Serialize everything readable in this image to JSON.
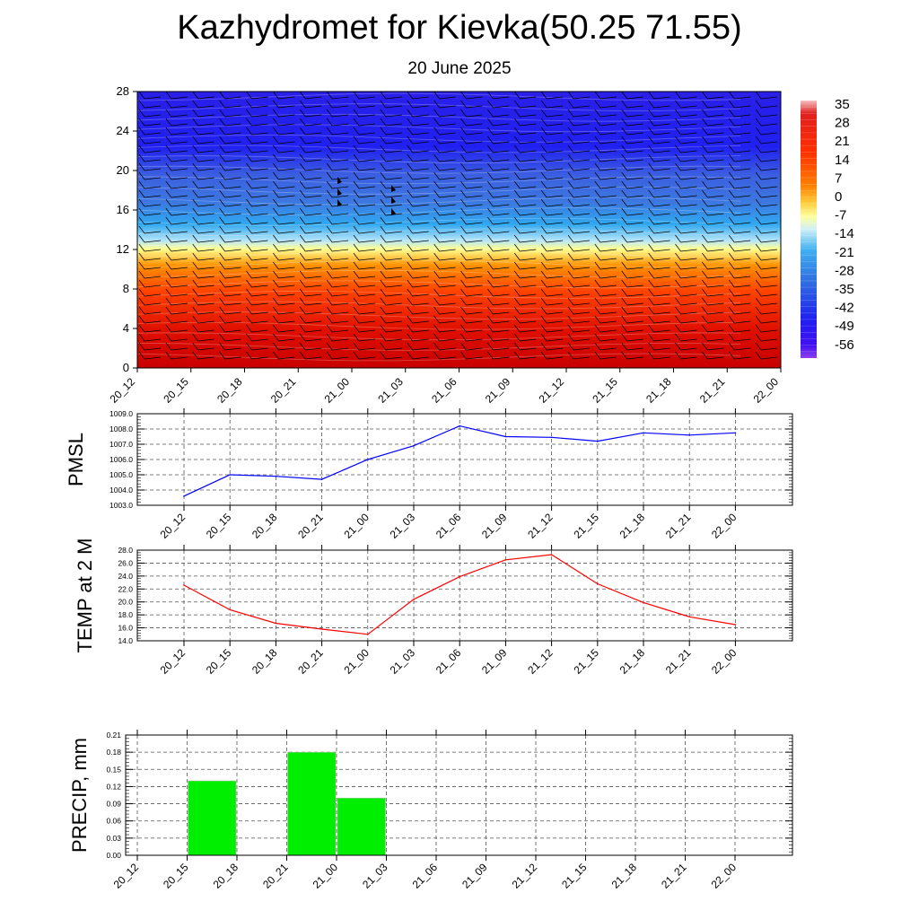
{
  "title": "Kazhydromet for Kievka(50.25 71.55)",
  "subtitle": "20 June 2025",
  "colors": {
    "pmsl_line": "#0000ff",
    "temp_line": "#ff0000",
    "precip_bar": "#00ee00",
    "grid": "#555555"
  },
  "chart_data": [
    {
      "type": "heatmap",
      "name": "cross-section",
      "x_labels": [
        "20_12",
        "20_15",
        "20_18",
        "20_21",
        "21_00",
        "21_03",
        "21_06",
        "21_09",
        "21_12",
        "21_15",
        "21_18",
        "21_21",
        "22_00"
      ],
      "yticks": [
        0,
        4,
        8,
        12,
        16,
        20,
        24,
        28
      ],
      "ylim": [
        0,
        28
      ],
      "colorbar_labels": [
        "35",
        "28",
        "21",
        "14",
        "7",
        "0",
        "-7",
        "-14",
        "-21",
        "-28",
        "-35",
        "-42",
        "-49",
        "-56"
      ],
      "colormap": "blue (cold, top) to yellow (near 0) to red (warm, bottom)",
      "overlay": "wind barbs"
    },
    {
      "type": "line",
      "ylabel": "PMSL",
      "x": [
        "20_12",
        "20_15",
        "20_18",
        "20_21",
        "21_00",
        "21_03",
        "21_06",
        "21_09",
        "21_12",
        "21_15",
        "21_18",
        "21_21",
        "22_00"
      ],
      "values": [
        1003.6,
        1005.0,
        1004.9,
        1004.7,
        1006.0,
        1006.9,
        1008.2,
        1007.5,
        1007.45,
        1007.2,
        1007.75,
        1007.6,
        1007.75
      ],
      "ylim": [
        1003.0,
        1009.0
      ],
      "yticks": [
        "1003.0",
        "1004.0",
        "1005.0",
        "1006.0",
        "1007.0",
        "1008.0",
        "1009.0"
      ],
      "grid": true
    },
    {
      "type": "line",
      "ylabel": "TEMP at 2 M",
      "x": [
        "20_12",
        "20_15",
        "20_18",
        "20_21",
        "21_00",
        "21_03",
        "21_06",
        "21_09",
        "21_12",
        "21_15",
        "21_18",
        "21_21",
        "22_00"
      ],
      "values": [
        22.6,
        18.8,
        16.7,
        15.8,
        15.0,
        20.4,
        23.9,
        26.5,
        27.3,
        22.8,
        19.9,
        17.7,
        16.5
      ],
      "ylim": [
        14.0,
        28.0
      ],
      "yticks": [
        "14.0",
        "16.0",
        "18.0",
        "20.0",
        "22.0",
        "24.0",
        "26.0",
        "28.0"
      ],
      "grid": true
    },
    {
      "type": "bar",
      "ylabel": "PRECIP, mm",
      "categories": [
        "20_12",
        "20_15",
        "20_18",
        "20_21",
        "21_00",
        "21_03",
        "21_06",
        "21_09",
        "21_12",
        "21_15",
        "21_18",
        "21_21",
        "22_00"
      ],
      "values": [
        0,
        0.13,
        0,
        0.18,
        0.1,
        0,
        0,
        0,
        0,
        0,
        0,
        0,
        0
      ],
      "ylim": [
        0,
        0.21
      ],
      "yticks": [
        "0.00",
        "0.03",
        "0.06",
        "0.09",
        "0.12",
        "0.15",
        "0.18",
        "0.21"
      ],
      "grid": true
    }
  ]
}
